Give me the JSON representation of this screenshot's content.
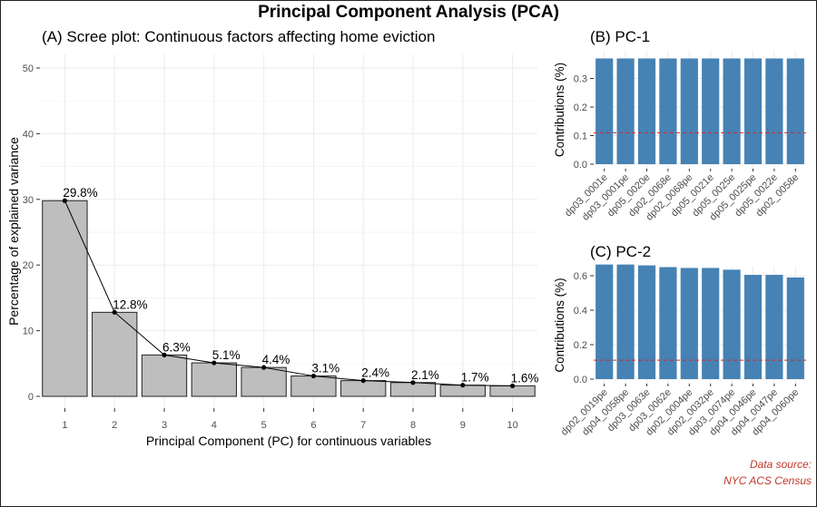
{
  "title": "Principal Component Analysis (PCA)",
  "source_line1": "Data source:",
  "source_line2": "NYC ACS Census",
  "colors": {
    "scree_bar": "#bebebe",
    "contrib_bar": "#4682b4",
    "ref_line": "#d62728",
    "source_text": "#c0392b",
    "grid": "#ebebeb"
  },
  "chart_data": [
    {
      "type": "bar",
      "title": "(A) Scree plot: Continuous factors affecting home eviction",
      "xlabel": "Principal Component (PC) for continuous variables",
      "ylabel": "Percentage of explained variance",
      "categories": [
        "1",
        "2",
        "3",
        "4",
        "5",
        "6",
        "7",
        "8",
        "9",
        "10"
      ],
      "values": [
        29.8,
        12.8,
        6.3,
        5.1,
        4.4,
        3.1,
        2.4,
        2.1,
        1.7,
        1.6
      ],
      "labels": [
        "29.8%",
        "12.8%",
        "6.3%",
        "5.1%",
        "4.4%",
        "3.1%",
        "2.4%",
        "2.1%",
        "1.7%",
        "1.6%"
      ],
      "line_overlay": true,
      "ylim": [
        0,
        50
      ],
      "yticks": [
        0,
        10,
        20,
        30,
        40,
        50
      ],
      "grid": true
    },
    {
      "type": "bar",
      "title": "(B) PC-1",
      "xlabel": "",
      "ylabel": "Contributions (%)",
      "categories": [
        "dp03_0001e",
        "dp03_0001pe",
        "dp05_0020e",
        "dp02_0068e",
        "dp02_0068pe",
        "dp05_0021e",
        "dp05_0025e",
        "dp05_0025pe",
        "dp05_0022e",
        "dp02_0058e"
      ],
      "values": [
        0.37,
        0.37,
        0.37,
        0.37,
        0.37,
        0.37,
        0.37,
        0.37,
        0.37,
        0.37
      ],
      "reference_line": 0.11,
      "ylim": [
        0,
        0.38
      ],
      "yticks": [
        "0.0",
        "0.1",
        "0.2",
        "0.3"
      ],
      "grid": true
    },
    {
      "type": "bar",
      "title": "(C) PC-2",
      "xlabel": "",
      "ylabel": "Contributions (%)",
      "categories": [
        "dp02_0019pe",
        "dp04_0058pe",
        "dp03_0063e",
        "dp03_0062e",
        "dp02_0004pe",
        "dp02_0032pe",
        "dp03_0074pe",
        "dp04_0046pe",
        "dp04_0047pe",
        "dp04_0060pe"
      ],
      "values": [
        0.665,
        0.665,
        0.66,
        0.65,
        0.645,
        0.645,
        0.635,
        0.605,
        0.605,
        0.59
      ],
      "reference_line": 0.11,
      "ylim": [
        0,
        0.7
      ],
      "yticks": [
        "0.0",
        "0.2",
        "0.4",
        "0.6"
      ],
      "grid": true
    }
  ]
}
